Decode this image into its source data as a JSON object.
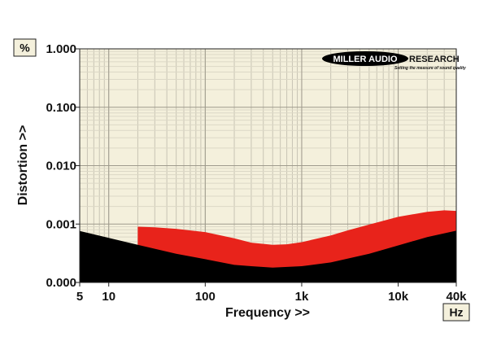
{
  "chart_data": {
    "type": "area",
    "xlabel": "Frequency >>",
    "ylabel": "Distortion >>",
    "y_unit_label": "%",
    "x_unit_label": "Hz",
    "x_scale": "log",
    "y_scale": "log",
    "xlim": [
      5,
      40000
    ],
    "ylim": [
      0.0001,
      1.0
    ],
    "grid": true,
    "x_ticks": [
      {
        "value": 5,
        "label": "5"
      },
      {
        "value": 10,
        "label": "10"
      },
      {
        "value": 100,
        "label": "100"
      },
      {
        "value": 1000,
        "label": "1k"
      },
      {
        "value": 10000,
        "label": "10k"
      },
      {
        "value": 40000,
        "label": "40k"
      }
    ],
    "y_ticks": [
      {
        "value": 1.0,
        "label": "1.000"
      },
      {
        "value": 0.1,
        "label": "0.100"
      },
      {
        "value": 0.01,
        "label": "0.010"
      },
      {
        "value": 0.001,
        "label": "0.001"
      },
      {
        "value": 0.0001,
        "label": "0.000"
      }
    ],
    "series": [
      {
        "color": "#e8231b",
        "x": [
          20,
          30,
          50,
          100,
          200,
          300,
          500,
          700,
          1000,
          2000,
          3000,
          5000,
          10000,
          20000,
          30000,
          40000
        ],
        "values": [
          0.0009,
          0.00088,
          0.00083,
          0.00073,
          0.00057,
          0.00048,
          0.00044,
          0.00045,
          0.00049,
          0.00064,
          0.00078,
          0.00098,
          0.00133,
          0.00162,
          0.00172,
          0.00168
        ]
      },
      {
        "color": "#000000",
        "x": [
          5,
          10,
          20,
          50,
          100,
          200,
          300,
          500,
          1000,
          2000,
          5000,
          10000,
          20000,
          40000
        ],
        "values": [
          0.00076,
          0.00058,
          0.00044,
          0.00031,
          0.00025,
          0.0002,
          0.00019,
          0.00018,
          0.00019,
          0.00022,
          0.00031,
          0.00043,
          0.0006,
          0.00077
        ]
      }
    ]
  },
  "logo": {
    "name_main": "MILLER AUDIO",
    "name_side": "RESEARCH",
    "tagline": "Setting the measure of sound quality"
  }
}
